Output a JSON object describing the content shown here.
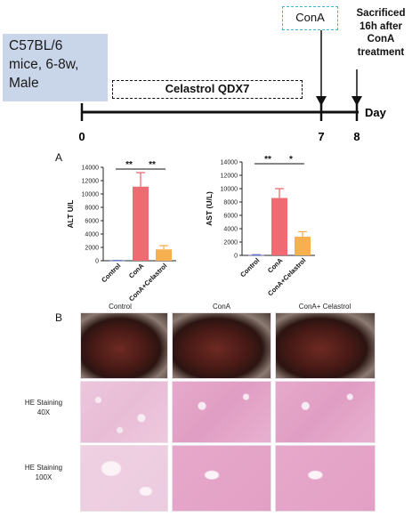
{
  "timeline": {
    "mouse_info": "C57BL/6\nmice, 6-8w,\nMale",
    "treatment_label": "Celastrol QDX7",
    "cona_label": "ConA",
    "sacrifice_label": "Sacrificed\n16h after\nConA\ntreatment",
    "ticks": [
      "0",
      "7",
      "8"
    ],
    "axis_label": "Day"
  },
  "panel_a_label": "A",
  "panel_b_label": "B",
  "colors": {
    "control": "#6a78c6",
    "cona": "#ee6b72",
    "cona_celastrol": "#f7b04f",
    "cona_box_border": "#43b5d4",
    "mouse_box_fill": "#c9d6ea"
  },
  "chart_data": [
    {
      "type": "bar",
      "categories": [
        "Control",
        "ConA",
        "ConA+Celastrol"
      ],
      "values": [
        30,
        11100,
        1700
      ],
      "errors": [
        20,
        2100,
        550
      ],
      "ylabel": "ALT U/L",
      "yticks": [
        "0",
        "2000",
        "4000",
        "6000",
        "8000",
        "10000",
        "12000",
        "14000"
      ],
      "ylim": [
        0,
        14000
      ],
      "significance": [
        {
          "label": "**",
          "from": "Control",
          "to": "ConA"
        },
        {
          "label": "**",
          "from": "ConA",
          "to": "ConA+Celastrol"
        }
      ]
    },
    {
      "type": "bar",
      "categories": [
        "Control",
        "ConA",
        "ConA+Celastrol"
      ],
      "values": [
        60,
        8600,
        2800
      ],
      "errors": [
        40,
        1400,
        750
      ],
      "ylabel": "AST (U/L)",
      "yticks": [
        "0",
        "2000",
        "4000",
        "6000",
        "8000",
        "10000",
        "12000",
        "14000"
      ],
      "ylim": [
        0,
        14000
      ],
      "significance": [
        {
          "label": "**",
          "from": "Control",
          "to": "ConA"
        },
        {
          "label": "*",
          "from": "ConA",
          "to": "ConA+Celastrol"
        }
      ]
    }
  ],
  "histology": {
    "columns": [
      "Control",
      "ConA",
      "ConA+ Celastrol"
    ],
    "rows": [
      "HE Staining\n40X",
      "HE Staining\n100X"
    ]
  }
}
